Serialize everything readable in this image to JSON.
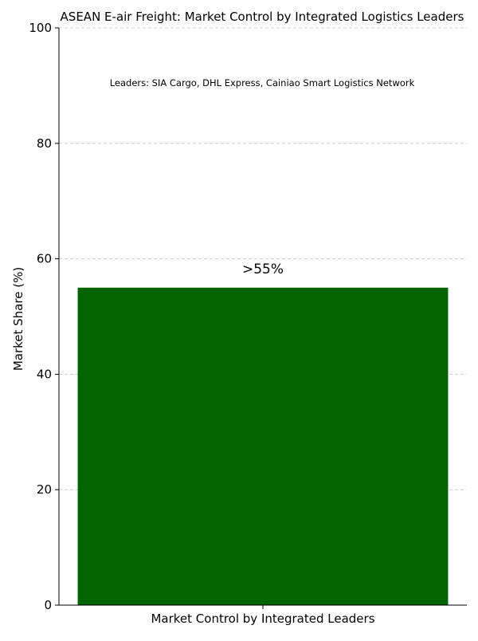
{
  "chart_data": {
    "type": "bar",
    "title": "ASEAN E-air Freight: Market Control by Integrated Logistics Leaders",
    "annotation": "Leaders: SIA Cargo, DHL Express, Cainiao Smart Logistics Network",
    "xlabel": "",
    "ylabel": "Market Share (%)",
    "categories": [
      "Market Control by Integrated Leaders"
    ],
    "values": [
      55
    ],
    "data_labels": [
      ">55%"
    ],
    "ylim": [
      0,
      100
    ],
    "yticks": [
      0,
      20,
      40,
      60,
      80,
      100
    ],
    "ytick_labels": [
      "0",
      "20",
      "40",
      "60",
      "80",
      "100"
    ],
    "grid": true,
    "legend": "none",
    "colors": {
      "bar": "#006400",
      "grid": "#cccccc",
      "axis": "#000000"
    }
  }
}
